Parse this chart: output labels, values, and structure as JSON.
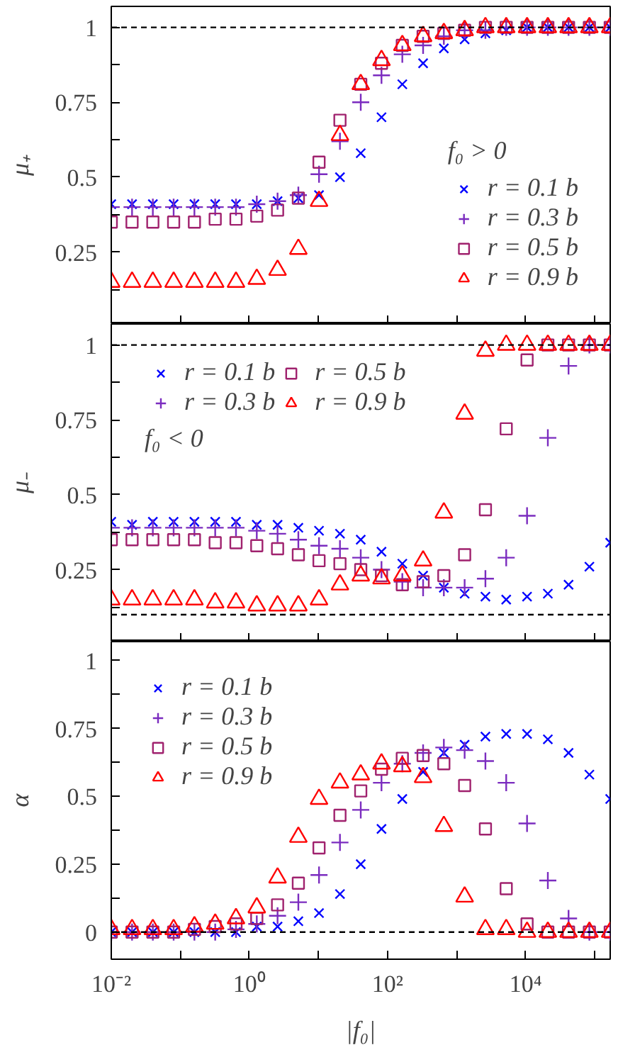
{
  "chart_data": [
    {
      "type": "scatter",
      "ylabel": "μ₊",
      "legend_title": "f₀ > 0",
      "legend": "bottom right",
      "log": "x",
      "tick_labels": "y",
      "x": [
        0.01,
        0.02,
        0.04,
        0.08,
        0.16,
        0.32,
        0.64,
        1.28,
        2.56,
        5.12,
        10.2,
        20.5,
        41,
        81.9,
        164,
        328,
        655,
        1310,
        2620,
        5240,
        10500,
        21000,
        41900,
        83900,
        168000
      ],
      "xlim": [
        0.01,
        168000
      ],
      "xticks": [
        {
          "value": 0.01,
          "label": null
        },
        {
          "value": 0.1,
          "label": null
        },
        {
          "value": 1,
          "label": null
        },
        {
          "value": 10,
          "label": null
        },
        {
          "value": 100,
          "label": null
        },
        {
          "value": 1000,
          "label": null
        },
        {
          "value": 10000,
          "label": null
        },
        {
          "value": 100000,
          "label": null
        }
      ],
      "ylim": [
        0.01,
        1.07
      ],
      "yticks": [
        {
          "value": 0.125,
          "label": null
        },
        0.25,
        {
          "value": 0.375,
          "label": null
        },
        0.5,
        {
          "value": 0.625,
          "label": null
        },
        0.75,
        {
          "value": 0.875,
          "label": null
        },
        1
      ],
      "ref_lines": [
        {
          "axis": "y",
          "value": 1,
          "color": "#000000",
          "line_style": "dashed"
        }
      ],
      "series": [
        {
          "name": "r = 0.1 b",
          "color": "#0000ff",
          "marker": "x",
          "values": [
            0.41,
            0.41,
            0.41,
            0.41,
            0.41,
            0.41,
            0.41,
            0.41,
            0.42,
            0.43,
            0.44,
            0.5,
            0.58,
            0.7,
            0.81,
            0.88,
            0.93,
            0.96,
            0.98,
            0.99,
            1,
            1,
            1,
            1,
            1
          ]
        },
        {
          "name": "r = 0.3 b",
          "color": "#7b2cbf",
          "marker": "cross",
          "values": [
            0.4,
            0.4,
            0.4,
            0.4,
            0.4,
            0.4,
            0.4,
            0.41,
            0.42,
            0.44,
            0.51,
            0.62,
            0.75,
            0.84,
            0.91,
            0.94,
            0.97,
            0.99,
            0.99,
            1,
            1,
            1,
            1,
            1,
            1
          ]
        },
        {
          "name": "r = 0.5 b",
          "color": "#a0226e",
          "marker": "square",
          "values": [
            0.35,
            0.35,
            0.35,
            0.35,
            0.35,
            0.36,
            0.36,
            0.37,
            0.39,
            0.43,
            0.55,
            0.69,
            0.81,
            0.88,
            0.94,
            0.97,
            0.98,
            0.99,
            1,
            1,
            1,
            1,
            1,
            1,
            1
          ]
        },
        {
          "name": "r = 0.9 b",
          "color": "#ff0000",
          "marker": "triangle",
          "values": [
            0.15,
            0.15,
            0.15,
            0.15,
            0.15,
            0.15,
            0.15,
            0.16,
            0.19,
            0.26,
            0.42,
            0.64,
            0.81,
            0.89,
            0.94,
            0.97,
            0.98,
            0.99,
            1,
            1,
            1,
            1,
            1,
            1,
            1
          ]
        }
      ]
    },
    {
      "type": "scatter",
      "ylabel": "μ₋",
      "legend_title": "f₀ < 0",
      "legend": "top left",
      "log": "x",
      "tick_labels": "y",
      "x": [
        0.01,
        0.02,
        0.04,
        0.08,
        0.16,
        0.32,
        0.64,
        1.28,
        2.56,
        5.12,
        10.2,
        20.5,
        41,
        81.9,
        164,
        328,
        655,
        1310,
        2620,
        5240,
        10500,
        21000,
        41900,
        83900,
        168000
      ],
      "xlim": [
        0.01,
        168000
      ],
      "xticks": [
        {
          "value": 0.01,
          "label": null
        },
        {
          "value": 0.1,
          "label": null
        },
        {
          "value": 1,
          "label": null
        },
        {
          "value": 10,
          "label": null
        },
        {
          "value": 100,
          "label": null
        },
        {
          "value": 1000,
          "label": null
        },
        {
          "value": 10000,
          "label": null
        },
        {
          "value": 100000,
          "label": null
        }
      ],
      "ylim": [
        0.01,
        1.07
      ],
      "yticks": [
        {
          "value": 0.125,
          "label": null
        },
        0.25,
        {
          "value": 0.375,
          "label": null
        },
        0.5,
        {
          "value": 0.625,
          "label": null
        },
        0.75,
        {
          "value": 0.875,
          "label": null
        },
        1
      ],
      "ref_lines": [
        {
          "axis": "y",
          "value": 1,
          "color": "#000000",
          "line_style": "dashed"
        },
        {
          "axis": "y",
          "value": 0.1,
          "color": "#000000",
          "line_style": "dashed"
        }
      ],
      "series": [
        {
          "name": "r = 0.1 b",
          "color": "#0000ff",
          "marker": "x",
          "values": [
            0.41,
            0.4,
            0.41,
            0.41,
            0.41,
            0.41,
            0.41,
            0.4,
            0.4,
            0.39,
            0.38,
            0.37,
            0.35,
            0.31,
            0.27,
            0.23,
            0.19,
            0.17,
            0.16,
            0.15,
            0.16,
            0.17,
            0.2,
            0.26,
            0.34
          ]
        },
        {
          "name": "r = 0.3 b",
          "color": "#7b2cbf",
          "marker": "cross",
          "values": [
            0.39,
            0.39,
            0.39,
            0.39,
            0.39,
            0.39,
            0.39,
            0.38,
            0.37,
            0.35,
            0.33,
            0.32,
            0.29,
            0.25,
            0.21,
            0.19,
            0.19,
            0.19,
            0.22,
            0.29,
            0.43,
            0.69,
            0.93,
            1,
            1
          ]
        },
        {
          "name": "r = 0.5 b",
          "color": "#a0226e",
          "marker": "square",
          "values": [
            0.35,
            0.35,
            0.35,
            0.35,
            0.35,
            0.34,
            0.34,
            0.33,
            0.32,
            0.3,
            0.28,
            0.27,
            0.25,
            0.23,
            0.2,
            0.21,
            0.23,
            0.3,
            0.45,
            0.72,
            0.95,
            1,
            1,
            1,
            1
          ]
        },
        {
          "name": "r = 0.9 b",
          "color": "#ff0000",
          "marker": "triangle",
          "values": [
            0.15,
            0.15,
            0.15,
            0.15,
            0.15,
            0.14,
            0.14,
            0.13,
            0.13,
            0.13,
            0.15,
            0.2,
            0.23,
            0.22,
            0.23,
            0.28,
            0.44,
            0.77,
            0.98,
            1,
            1,
            1,
            1,
            1,
            1
          ]
        }
      ]
    },
    {
      "type": "scatter",
      "ylabel": "α",
      "xlabel": "|f₀|",
      "legend": "top left",
      "log": "x",
      "x": [
        0.01,
        0.02,
        0.04,
        0.08,
        0.16,
        0.32,
        0.64,
        1.28,
        2.56,
        5.12,
        10.2,
        20.5,
        41,
        81.9,
        164,
        328,
        655,
        1310,
        2620,
        5240,
        10500,
        21000,
        41900,
        83900,
        168000
      ],
      "xlim": [
        0.01,
        168000
      ],
      "xticks": [
        {
          "value": 0.01,
          "label": "10⁻²"
        },
        {
          "value": 0.1,
          "label": null
        },
        {
          "value": 1,
          "label": "10⁰"
        },
        {
          "value": 10,
          "label": null
        },
        {
          "value": 100,
          "label": "10²"
        },
        {
          "value": 1000,
          "label": null
        },
        {
          "value": 10000,
          "label": "10⁴"
        },
        {
          "value": 100000,
          "label": null
        }
      ],
      "ylim": [
        -0.1,
        1.07
      ],
      "yticks": [
        0,
        {
          "value": 0.125,
          "label": null
        },
        0.25,
        {
          "value": 0.375,
          "label": null
        },
        0.5,
        {
          "value": 0.625,
          "label": null
        },
        0.75,
        {
          "value": 0.875,
          "label": null
        },
        1
      ],
      "ref_lines": [
        {
          "axis": "y",
          "value": 0,
          "color": "#000000",
          "line_style": "dashed"
        }
      ],
      "series": [
        {
          "name": "r = 0.1 b",
          "color": "#0000ff",
          "marker": "x",
          "values": [
            0,
            0,
            0,
            0,
            0,
            0,
            0,
            0.02,
            0.02,
            0.04,
            0.07,
            0.14,
            0.25,
            0.38,
            0.49,
            0.59,
            0.66,
            0.69,
            0.72,
            0.73,
            0.73,
            0.71,
            0.66,
            0.58,
            0.49
          ]
        },
        {
          "name": "r = 0.3 b",
          "color": "#7b2cbf",
          "marker": "cross",
          "values": [
            0,
            0,
            0,
            0,
            0,
            0,
            0.01,
            0.03,
            0.06,
            0.11,
            0.21,
            0.33,
            0.45,
            0.55,
            0.62,
            0.66,
            0.68,
            0.67,
            0.63,
            0.55,
            0.4,
            0.19,
            0.05,
            0,
            0
          ]
        },
        {
          "name": "r = 0.5 b",
          "color": "#a0226e",
          "marker": "square",
          "values": [
            0,
            0,
            0,
            0,
            0.01,
            0.02,
            0.03,
            0.05,
            0.1,
            0.18,
            0.31,
            0.43,
            0.52,
            0.6,
            0.64,
            0.65,
            0.62,
            0.54,
            0.38,
            0.16,
            0.03,
            0,
            0,
            0,
            0
          ]
        },
        {
          "name": "r = 0.9 b",
          "color": "#ff0000",
          "marker": "triangle",
          "values": [
            0.01,
            0.01,
            0.01,
            0.01,
            0.02,
            0.03,
            0.05,
            0.09,
            0.2,
            0.35,
            0.49,
            0.55,
            0.58,
            0.62,
            0.61,
            0.57,
            0.39,
            0.13,
            0.01,
            0.01,
            0,
            0,
            0,
            0,
            0
          ]
        }
      ]
    }
  ]
}
